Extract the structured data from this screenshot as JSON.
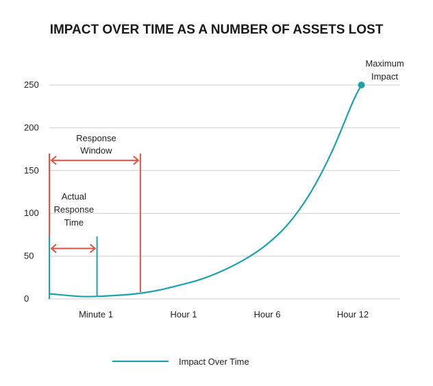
{
  "chart_data": {
    "type": "line",
    "title": "IMPACT OVER TIME AS A NUMBER OF ASSETS LOST",
    "xlabel": "",
    "ylabel": "",
    "ylim": [
      0,
      250
    ],
    "yticks": [
      "0",
      "50",
      "100",
      "150",
      "200",
      "250"
    ],
    "categories": [
      "Minute 1",
      "Hour 1",
      "Hour 6",
      "Hour 12"
    ],
    "grid": true,
    "legend_position": "bottom",
    "colors": {
      "series": "#1aa3ad",
      "annotation": "#e8503f",
      "grid": "#cccccc"
    },
    "series": [
      {
        "name": "Impact Over Time",
        "x": [
          0,
          0.35,
          0.55,
          0.75,
          1,
          1.25,
          1.5,
          1.75,
          2,
          2.25,
          2.5,
          2.75,
          3,
          3.25,
          3.5,
          3.6
        ],
        "values": [
          6,
          3,
          3,
          4,
          6,
          10,
          16,
          23,
          33,
          46,
          63,
          87,
          122,
          170,
          230,
          250
        ]
      }
    ],
    "annotations": {
      "maximum_impact": {
        "label_line1": "Maximum",
        "label_line2": "Impact",
        "x": 3.6,
        "y": 250
      },
      "response_window": {
        "label_line1": "Response",
        "label_line2": "Window",
        "x_start": 0,
        "x_end": 1.05
      },
      "actual_response": {
        "label_line1": "Actual",
        "label_line2": "Response",
        "label_line3": "Time",
        "x_start": 0,
        "x_end": 0.55
      }
    }
  }
}
